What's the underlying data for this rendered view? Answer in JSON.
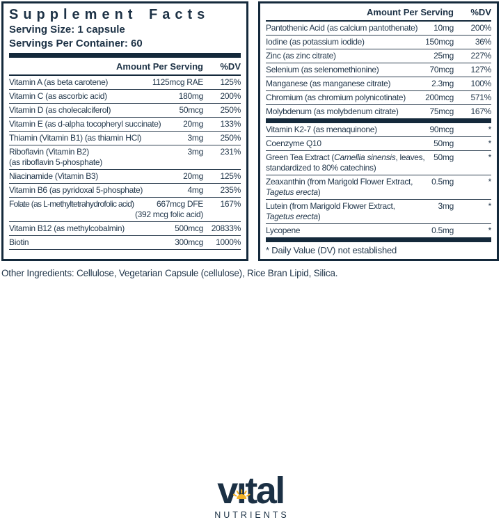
{
  "colors": {
    "navy_text": "#22374b",
    "navy_dark": "#14293b",
    "gold": "#f2b124"
  },
  "title": "Supplement Facts",
  "serving_size": "Serving Size: 1 capsule",
  "servings_per_container": "Servings Per Container: 60",
  "columns": {
    "amount": "Amount Per Serving",
    "dv": "%DV"
  },
  "left_rows": [
    {
      "name": [
        [
          {
            "t": "Vitamin A (as beta carotene)"
          }
        ]
      ],
      "amount": "1125mcg RAE",
      "dv": "125%"
    },
    {
      "name": [
        [
          {
            "t": "Vitamin C (as ascorbic acid)"
          }
        ]
      ],
      "amount": "180mg",
      "dv": "200%"
    },
    {
      "name": [
        [
          {
            "t": "Vitamin D (as cholecalciferol)"
          }
        ]
      ],
      "amount": "50mcg",
      "dv": "250%"
    },
    {
      "name": [
        [
          {
            "t": "Vitamin E (as d-alpha tocopheryl succinate)"
          }
        ]
      ],
      "amount": "20mg",
      "dv": "133%"
    },
    {
      "name": [
        [
          {
            "t": "Thiamin (Vitamin B1) (as thiamin HCl)"
          }
        ]
      ],
      "amount": "3mg",
      "dv": "250%"
    },
    {
      "name": [
        [
          {
            "t": "Riboflavin (Vitamin B2)"
          }
        ],
        [
          {
            "t": "(as riboflavin 5-phosphate)"
          }
        ]
      ],
      "amount": "3mg",
      "dv": "231%"
    },
    {
      "name": [
        [
          {
            "t": "Niacinamide (Vitamin B3)"
          }
        ]
      ],
      "amount": "20mg",
      "dv": "125%"
    },
    {
      "name": [
        [
          {
            "t": "Vitamin B6 (as pyridoxal 5-phosphate)"
          }
        ]
      ],
      "amount": "4mg",
      "dv": "235%"
    },
    {
      "name": [
        [
          {
            "t": "Folate (as L-methyltetrahydrofolic acid)"
          }
        ]
      ],
      "tight": true,
      "amount": "667mcg DFE",
      "amount2": "(392 mcg folic acid)",
      "dv": "167%"
    },
    {
      "name": [
        [
          {
            "t": "Vitamin B12 (as methylcobalmin)"
          }
        ]
      ],
      "amount": "500mcg",
      "dv": "20833%"
    },
    {
      "name": [
        [
          {
            "t": "Biotin"
          }
        ]
      ],
      "amount": "300mcg",
      "dv": "1000%"
    }
  ],
  "right_rows_top": [
    {
      "name": [
        [
          {
            "t": "Pantothenic Acid (as calcium pantothenate)"
          }
        ]
      ],
      "amount": "10mg",
      "dv": "200%"
    },
    {
      "name": [
        [
          {
            "t": "Iodine (as potassium iodide)"
          }
        ]
      ],
      "amount": "150mcg",
      "dv": "36%"
    },
    {
      "name": [
        [
          {
            "t": "Zinc (as zinc citrate)"
          }
        ]
      ],
      "amount": "25mg",
      "dv": "227%"
    },
    {
      "name": [
        [
          {
            "t": "Selenium (as selenomethionine)"
          }
        ]
      ],
      "amount": "70mcg",
      "dv": "127%"
    },
    {
      "name": [
        [
          {
            "t": "Manganese (as manganese citrate)"
          }
        ]
      ],
      "amount": "2.3mg",
      "dv": "100%"
    },
    {
      "name": [
        [
          {
            "t": "Chromium (as chromium polynicotinate)"
          }
        ]
      ],
      "amount": "200mcg",
      "dv": "571%"
    },
    {
      "name": [
        [
          {
            "t": "Molybdenum (as molybdenum citrate)"
          }
        ]
      ],
      "amount": "75mcg",
      "dv": "167%"
    }
  ],
  "right_rows_bottom": [
    {
      "name": [
        [
          {
            "t": "Vitamin K2-7 (as menaquinone)"
          }
        ]
      ],
      "amount": "90mcg",
      "dv": "*"
    },
    {
      "name": [
        [
          {
            "t": "Coenzyme Q10"
          }
        ]
      ],
      "amount": "50mg",
      "dv": "*"
    },
    {
      "name": [
        [
          {
            "t": "Green Tea Extract ("
          },
          {
            "t": "Camellia sinensis",
            "i": true
          },
          {
            "t": ", leaves,"
          }
        ],
        [
          {
            "t": "standardized to 80% catechins)"
          }
        ]
      ],
      "amount": "50mg",
      "dv": "*"
    },
    {
      "name": [
        [
          {
            "t": "Zeaxanthin (from Marigold Flower Extract,"
          }
        ],
        [
          {
            "t": "Tagetus erecta",
            "i": true
          },
          {
            "t": ")"
          }
        ]
      ],
      "amount": "0.5mg",
      "dv": "*"
    },
    {
      "name": [
        [
          {
            "t": "Lutein (from Marigold Flower Extract,"
          }
        ],
        [
          {
            "t": "Tagetus erecta",
            "i": true
          },
          {
            "t": ")"
          }
        ]
      ],
      "amount": "3mg",
      "dv": "*"
    },
    {
      "name": [
        [
          {
            "t": "Lycopene"
          }
        ]
      ],
      "amount": "0.5mg",
      "dv": "*"
    }
  ],
  "footnote": "* Daily Value (DV) not established",
  "other_ingredients": "Other Ingredients: Cellulose, Vegetarian Capsule (cellulose), Rice Bran Lipid, Silica.",
  "logo": {
    "brand": "vital",
    "subtext": "NUTRIENTS"
  }
}
